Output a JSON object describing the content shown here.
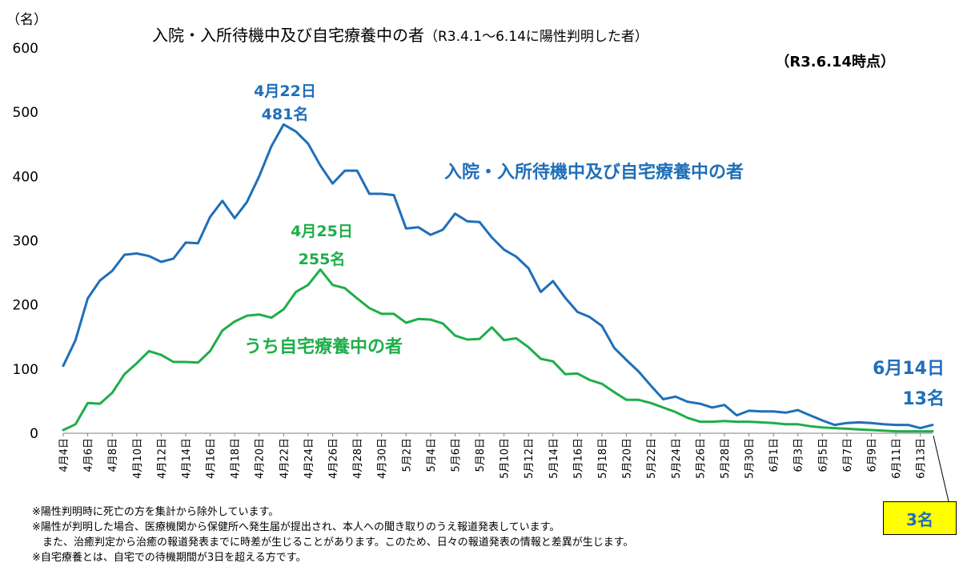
{
  "chart_data": {
    "type": "line",
    "title": "入院・入所待機中及び自宅療養中の者",
    "title_period": "（R3.4.1～6.14に陽性判明した者）",
    "subtitle": "（R3.6.14時点）",
    "ylabel": "（名）",
    "ylim": [
      0,
      600
    ],
    "yticks": [
      0,
      100,
      200,
      300,
      400,
      500,
      600
    ],
    "grid": false,
    "x": [
      "4月4日",
      "4月5日",
      "4月6日",
      "4月7日",
      "4月8日",
      "4月9日",
      "4月10日",
      "4月11日",
      "4月12日",
      "4月13日",
      "4月14日",
      "4月15日",
      "4月16日",
      "4月17日",
      "4月18日",
      "4月19日",
      "4月20日",
      "4月21日",
      "4月22日",
      "4月23日",
      "4月24日",
      "4月25日",
      "4月26日",
      "4月27日",
      "4月28日",
      "4月29日",
      "4月30日",
      "5月1日",
      "5月2日",
      "5月3日",
      "5月4日",
      "5月5日",
      "5月6日",
      "5月7日",
      "5月8日",
      "5月9日",
      "5月10日",
      "5月11日",
      "5月12日",
      "5月13日",
      "5月14日",
      "5月15日",
      "5月16日",
      "5月17日",
      "5月18日",
      "5月19日",
      "5月20日",
      "5月21日",
      "5月22日",
      "5月23日",
      "5月24日",
      "5月25日",
      "5月26日",
      "5月27日",
      "5月28日",
      "5月29日",
      "5月30日",
      "5月31日",
      "6月1日",
      "6月2日",
      "6月3日",
      "6月4日",
      "6月5日",
      "6月6日",
      "6月7日",
      "6月8日",
      "6月9日",
      "6月10日",
      "6月11日",
      "6月12日",
      "6月13日",
      "6月14日"
    ],
    "xtick_labels": [
      "4月4日",
      "4月6日",
      "4月8日",
      "4月10日",
      "4月12日",
      "4月14日",
      "4月16日",
      "4月18日",
      "4月20日",
      "4月22日",
      "4月24日",
      "4月26日",
      "4月28日",
      "4月30日",
      "5月2日",
      "5月4日",
      "5月6日",
      "5月8日",
      "5月10日",
      "5月12日",
      "5月14日",
      "5月16日",
      "5月18日",
      "5月20日",
      "5月22日",
      "5月24日",
      "5月26日",
      "5月28日",
      "5月30日",
      "6月1日",
      "6月3日",
      "6月5日",
      "6月7日",
      "6月9日",
      "6月11日",
      "6月13日"
    ],
    "series": [
      {
        "name": "入院・入所待機中及び自宅療養中の者",
        "color": "#1f6fb8",
        "values": [
          105,
          145,
          210,
          238,
          253,
          278,
          280,
          276,
          267,
          272,
          297,
          296,
          337,
          362,
          335,
          360,
          400,
          447,
          481,
          470,
          451,
          417,
          389,
          409,
          409,
          373,
          373,
          371,
          319,
          321,
          309,
          317,
          342,
          330,
          329,
          305,
          286,
          275,
          257,
          220,
          237,
          211,
          189,
          181,
          167,
          133,
          114,
          96,
          74,
          53,
          57,
          49,
          46,
          40,
          44,
          28,
          35,
          34,
          34,
          32,
          36,
          28,
          20,
          13,
          16,
          17,
          16,
          14,
          13,
          13,
          8,
          13
        ]
      },
      {
        "name": "うち自宅療養中の者",
        "color": "#1fae49",
        "values": [
          5,
          14,
          47,
          46,
          63,
          92,
          109,
          128,
          122,
          111,
          111,
          110,
          128,
          160,
          174,
          183,
          185,
          180,
          193,
          220,
          231,
          255,
          231,
          226,
          210,
          195,
          186,
          186,
          172,
          178,
          177,
          171,
          152,
          146,
          147,
          165,
          145,
          148,
          134,
          116,
          112,
          92,
          93,
          83,
          77,
          64,
          52,
          52,
          47,
          40,
          33,
          24,
          18,
          18,
          19,
          18,
          18,
          17,
          16,
          14,
          14,
          11,
          9,
          8,
          7,
          6,
          5,
          4,
          3,
          3,
          3,
          3
        ]
      }
    ],
    "annotations": {
      "blue_series_label": "入院・入所待機中及び自宅療養中の者",
      "green_series_label": "うち自宅療養中の者",
      "blue_peak_date": "4月22日",
      "blue_peak_value": "481名",
      "green_peak_date": "4月25日",
      "green_peak_value": "255名",
      "last_date": "6月14日",
      "last_blue_value": "13名",
      "last_green_value": "3名"
    }
  },
  "notes": [
    "※陽性判明時に死亡の方を集計から除外しています。",
    "※陽性が判明した場合、医療機関から保健所へ発生届が提出され、本人への聞き取りのうえ報道発表しています。",
    "　また、治癒判定から治癒の報道発表までに時差が生じることがあります。このため、日々の報道発表の情報と差異が生じます。",
    "※自宅療養とは、自宅での待機期間が3日を超える方です。"
  ]
}
